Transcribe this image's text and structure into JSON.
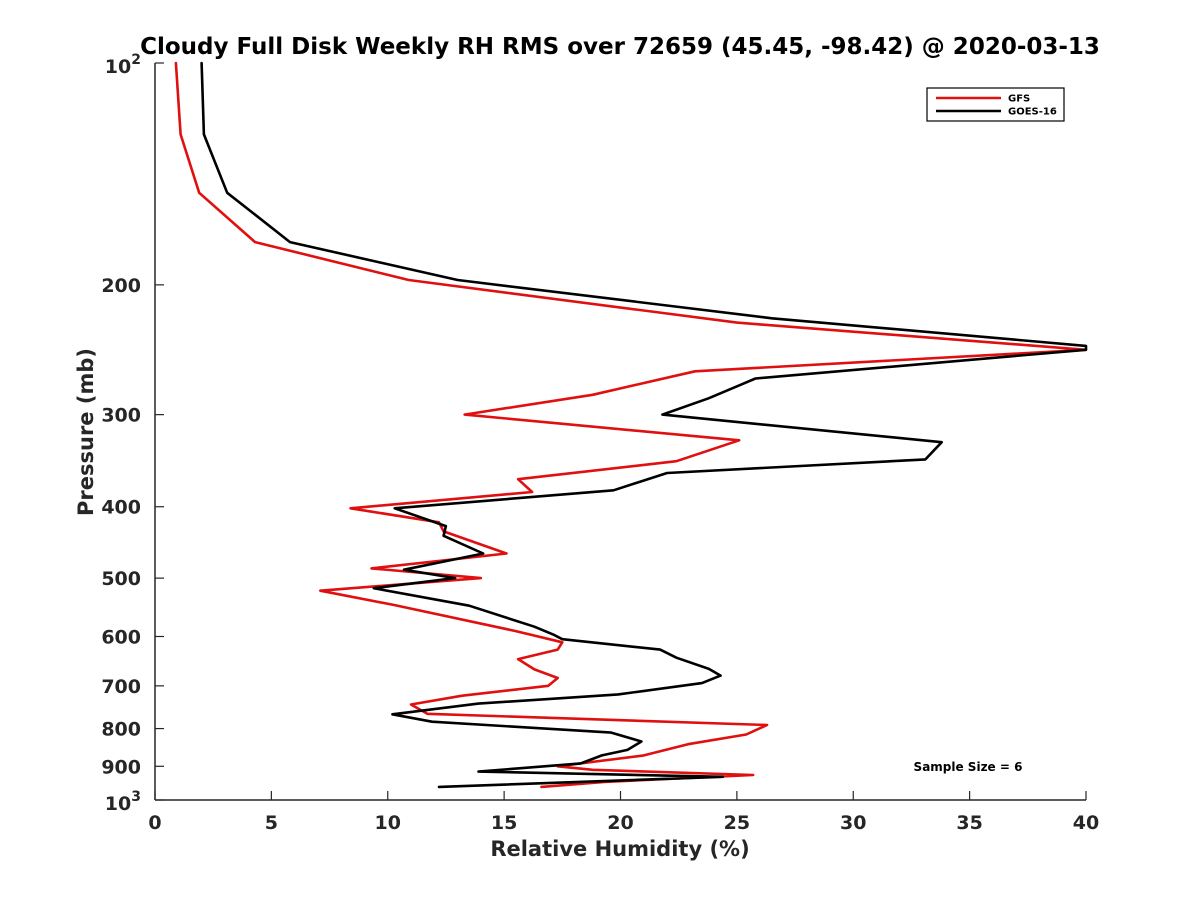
{
  "chart_data": {
    "type": "line",
    "title": "Cloudy Full Disk Weekly RH RMS over 72659 (45.45, -98.42) @ 2020-03-13",
    "xlabel": "Relative Humidity (%)",
    "ylabel": "Pressure (mb)",
    "xlim": [
      0,
      40
    ],
    "ylim": [
      100,
      1000
    ],
    "yscale": "log",
    "y_reversed": true,
    "x_ticks": [
      "0",
      "5",
      "10",
      "15",
      "20",
      "25",
      "30",
      "35",
      "40"
    ],
    "y_ticks": [
      {
        "value": 100,
        "base": "10",
        "exp": "2"
      },
      {
        "value": 200,
        "label": "200"
      },
      {
        "value": 300,
        "label": "300"
      },
      {
        "value": 400,
        "label": "400"
      },
      {
        "value": 500,
        "label": "500"
      },
      {
        "value": 600,
        "label": "600"
      },
      {
        "value": 700,
        "label": "700"
      },
      {
        "value": 800,
        "label": "800"
      },
      {
        "value": 900,
        "label": "900"
      },
      {
        "value": 1000,
        "base": "10",
        "exp": "3"
      }
    ],
    "legend_position": "top-right",
    "annotation": "Sample Size = 6",
    "series": [
      {
        "name": "GFS",
        "color": "#e01010",
        "x": [
          0.9,
          1.1,
          1.9,
          4.3,
          10.9,
          25,
          40,
          23.2,
          18.8,
          13.3,
          25.1,
          22.4,
          15.6,
          16.2,
          8.4,
          12.2,
          12.4,
          15.1,
          9.3,
          14,
          7.1,
          10.3,
          15.5,
          17.5,
          17.3,
          15.6,
          16.3,
          17.3,
          16.9,
          13.2,
          11,
          11.7,
          26.3,
          25.4,
          22.9,
          21,
          17.3,
          18.8,
          25.7,
          19.3,
          16.6
        ],
        "y": [
          100,
          125,
          150,
          175,
          197,
          225,
          245,
          262,
          282,
          300,
          325,
          347,
          367,
          382,
          402,
          420,
          432,
          463,
          485,
          500,
          520,
          544,
          590,
          611,
          625,
          644,
          665,
          683,
          700,
          722,
          742,
          764,
          791,
          815,
          840,
          870,
          900,
          910,
          925,
          945,
          960
        ]
      },
      {
        "name": "GOES-16",
        "color": "#000000",
        "x": [
          2,
          2.1,
          3.1,
          5.8,
          13,
          26.5,
          40,
          40,
          25.8,
          23.8,
          21.8,
          33.8,
          33.1,
          22,
          19.7,
          10.3,
          12.5,
          12.4,
          14.1,
          10.7,
          12.9,
          9.4,
          13.5,
          16.3,
          17.1,
          17.5,
          21.7,
          22.4,
          23.8,
          24.3,
          23.5,
          19.9,
          13.9,
          10.2,
          11.9,
          19.6,
          20.9,
          20.3,
          19.2,
          18.3,
          13.9,
          24.4,
          12.2
        ],
        "y": [
          100,
          125,
          150,
          175,
          197,
          222,
          242,
          245,
          268,
          285,
          300,
          327,
          345,
          360,
          380,
          402,
          425,
          438,
          463,
          487,
          500,
          516,
          545,
          582,
          596,
          605,
          625,
          641,
          664,
          678,
          694,
          719,
          740,
          765,
          783,
          810,
          833,
          855,
          870,
          892,
          915,
          930,
          960
        ]
      }
    ]
  }
}
